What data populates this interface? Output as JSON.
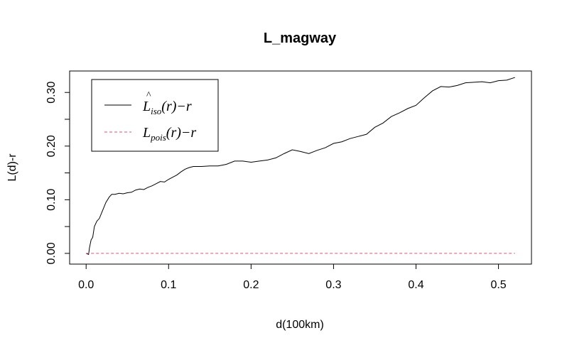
{
  "chart_data": {
    "type": "line",
    "title": "L_magway",
    "xlabel": "d(100km)",
    "ylabel": "L(d)-r",
    "xlim": [
      -0.02,
      0.54
    ],
    "ylim": [
      -0.02,
      0.34
    ],
    "x_ticks": [
      0.0,
      0.1,
      0.2,
      0.3,
      0.4,
      0.5
    ],
    "x_tick_labels": [
      "0.0",
      "0.1",
      "0.2",
      "0.3",
      "0.4",
      "0.5"
    ],
    "y_ticks": [
      0.0,
      0.1,
      0.2,
      0.3
    ],
    "y_tick_labels": [
      "0.00",
      "0.10",
      "0.20",
      "0.30"
    ],
    "grid": false,
    "legend_position": "top-left",
    "series": [
      {
        "name": "L_iso(r) - r",
        "color": "#000000",
        "dash": "solid",
        "x": [
          0.0,
          0.003,
          0.004,
          0.006,
          0.008,
          0.01,
          0.013,
          0.016,
          0.02,
          0.024,
          0.028,
          0.031,
          0.035,
          0.04,
          0.045,
          0.05,
          0.055,
          0.06,
          0.065,
          0.07,
          0.075,
          0.08,
          0.085,
          0.09,
          0.095,
          0.1,
          0.105,
          0.11,
          0.115,
          0.12,
          0.125,
          0.13,
          0.14,
          0.15,
          0.16,
          0.17,
          0.18,
          0.19,
          0.2,
          0.21,
          0.22,
          0.23,
          0.24,
          0.25,
          0.26,
          0.27,
          0.28,
          0.29,
          0.3,
          0.31,
          0.32,
          0.33,
          0.34,
          0.35,
          0.36,
          0.37,
          0.38,
          0.39,
          0.4,
          0.41,
          0.42,
          0.43,
          0.44,
          0.45,
          0.46,
          0.47,
          0.48,
          0.49,
          0.5,
          0.51,
          0.52
        ],
        "y": [
          0.0,
          -0.002,
          0.01,
          0.025,
          0.03,
          0.05,
          0.06,
          0.065,
          0.08,
          0.095,
          0.105,
          0.11,
          0.11,
          0.112,
          0.111,
          0.113,
          0.114,
          0.118,
          0.12,
          0.119,
          0.123,
          0.126,
          0.13,
          0.134,
          0.133,
          0.138,
          0.142,
          0.146,
          0.152,
          0.157,
          0.16,
          0.162,
          0.162,
          0.163,
          0.163,
          0.166,
          0.172,
          0.172,
          0.17,
          0.172,
          0.174,
          0.178,
          0.186,
          0.193,
          0.19,
          0.186,
          0.192,
          0.197,
          0.205,
          0.208,
          0.214,
          0.218,
          0.222,
          0.235,
          0.243,
          0.255,
          0.262,
          0.27,
          0.276,
          0.29,
          0.303,
          0.311,
          0.31,
          0.313,
          0.318,
          0.319,
          0.32,
          0.318,
          0.322,
          0.323,
          0.328
        ]
      },
      {
        "name": "L_pois(r) - r",
        "color": "#DF536B",
        "dash": "dashed",
        "x": [
          0.0,
          0.52
        ],
        "y": [
          0.0,
          0.0
        ]
      }
    ]
  },
  "legend": {
    "entries": [
      {
        "main": "L",
        "hat": "^",
        "sub": "iso",
        "rest": "(r)−r"
      },
      {
        "main": "L",
        "hat": "",
        "sub": "pois",
        "rest": "(r)−r"
      }
    ]
  }
}
